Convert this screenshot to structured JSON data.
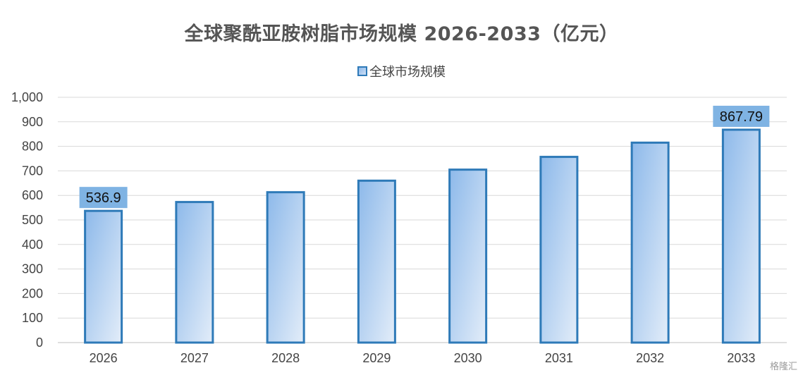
{
  "chart_data": {
    "type": "bar",
    "title": "全球聚酰亚胺树脂市场规模 2026-2033（亿元）",
    "categories": [
      "2026",
      "2027",
      "2028",
      "2029",
      "2030",
      "2031",
      "2032",
      "2033"
    ],
    "series": [
      {
        "name": "全球市场规模",
        "values": [
          536.9,
          573,
          613,
          660,
          705,
          757,
          815,
          867.79
        ]
      }
    ],
    "data_labels": [
      {
        "category": "2026",
        "text": "536.9"
      },
      {
        "category": "2033",
        "text": "867.79"
      }
    ],
    "ylim": [
      0,
      1000
    ],
    "yticks": [
      0,
      100,
      200,
      300,
      400,
      500,
      600,
      700,
      800,
      900,
      1000
    ],
    "ytick_labels": [
      "0",
      "100",
      "200",
      "300",
      "400",
      "500",
      "600",
      "700",
      "800",
      "900",
      "1,000"
    ],
    "xlabel": "",
    "ylabel": "",
    "grid": true,
    "legend_position": "top-center",
    "colors": {
      "bar_fill_start": "#8db9ea",
      "bar_fill_end": "#e3edf9",
      "bar_border": "#2e7ab8",
      "label_box": "#7fb3e3",
      "grid": "#d9d9d9"
    }
  },
  "watermark": "格隆汇"
}
